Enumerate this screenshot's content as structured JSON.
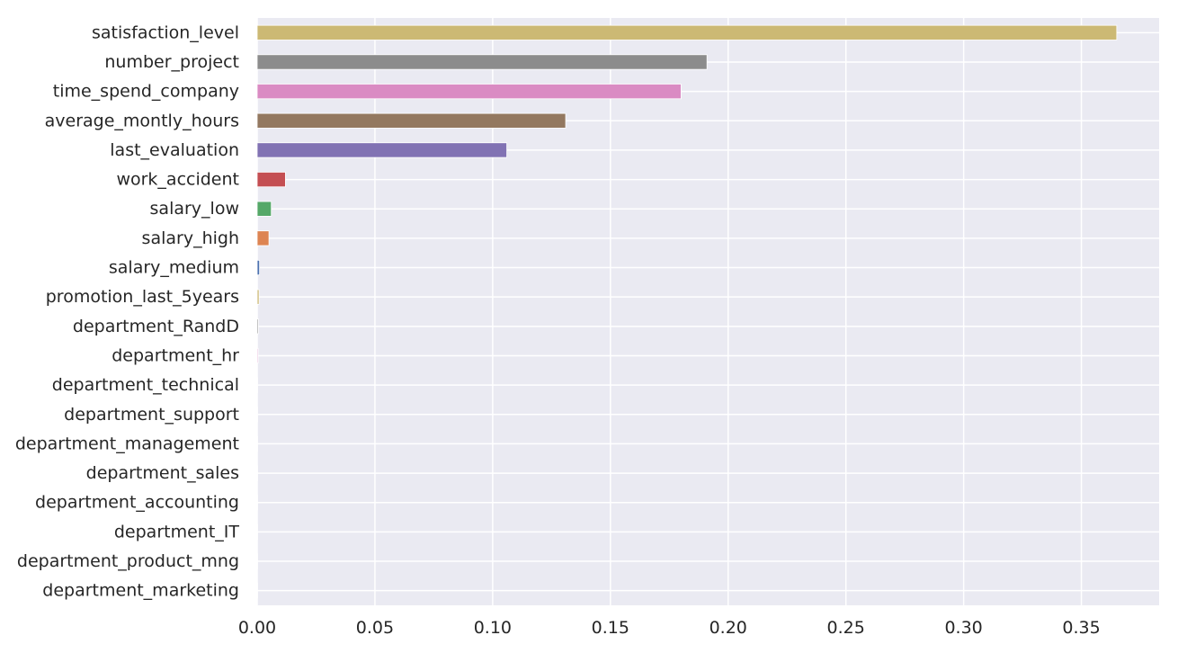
{
  "chart_data": {
    "type": "bar",
    "orientation": "horizontal",
    "categories": [
      "satisfaction_level",
      "number_project",
      "time_spend_company",
      "average_montly_hours",
      "last_evaluation",
      "work_accident",
      "salary_low",
      "salary_high",
      "salary_medium",
      "promotion_last_5years",
      "department_RandD",
      "department_hr",
      "department_technical",
      "department_support",
      "department_management",
      "department_sales",
      "department_accounting",
      "department_IT",
      "department_product_mng",
      "department_marketing"
    ],
    "values": [
      0.365,
      0.191,
      0.18,
      0.131,
      0.106,
      0.012,
      0.006,
      0.005,
      0.001,
      0.0008,
      0.0005,
      0.0004,
      0.0002,
      0.0002,
      0.0001,
      0.0001,
      0.0001,
      0.0001,
      0.0001,
      0.0001
    ],
    "colors": [
      "#ccb974",
      "#8c8c8c",
      "#da8bc3",
      "#937860",
      "#8172b3",
      "#c44e52",
      "#55a868",
      "#dd8452",
      "#4c72b0",
      "#ccb974",
      "#8c8c8c",
      "#da8bc3",
      "#937860",
      "#8172b3",
      "#c44e52",
      "#55a868",
      "#dd8452",
      "#4c72b0",
      "#ccb974",
      "#8c8c8c"
    ],
    "xticks": [
      0.0,
      0.05,
      0.1,
      0.15,
      0.2,
      0.25,
      0.3,
      0.35
    ],
    "xtick_labels": [
      "0.00",
      "0.05",
      "0.10",
      "0.15",
      "0.20",
      "0.25",
      "0.30",
      "0.35"
    ],
    "xlim": [
      0,
      0.383
    ],
    "title": "",
    "xlabel": "",
    "ylabel": "",
    "grid": true,
    "background": "#eaeaf2"
  }
}
